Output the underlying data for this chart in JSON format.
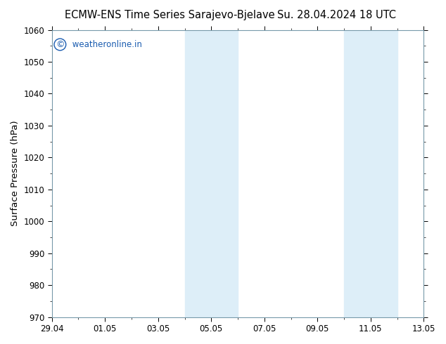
{
  "title_left": "ECMW-ENS Time Series Sarajevo-Bjelave",
  "title_right": "Su. 28.04.2024 18 UTC",
  "ylabel": "Surface Pressure (hPa)",
  "ylim": [
    970,
    1060
  ],
  "yticks": [
    970,
    980,
    990,
    1000,
    1010,
    1020,
    1030,
    1040,
    1050,
    1060
  ],
  "xlim": [
    0,
    14
  ],
  "xtick_labels": [
    "29.04",
    "01.05",
    "03.05",
    "05.05",
    "07.05",
    "09.05",
    "11.05",
    "13.05"
  ],
  "xtick_positions": [
    0,
    2,
    4,
    6,
    8,
    10,
    12,
    14
  ],
  "shaded_bands": [
    {
      "xstart": 5.0,
      "xend": 7.0
    },
    {
      "xstart": 11.0,
      "xend": 13.0
    }
  ],
  "shaded_color": "#ddeef8",
  "background_color": "#ffffff",
  "plot_bg_color": "#ffffff",
  "watermark_text": " weatheronline.in",
  "watermark_color": "#1a5cb0",
  "copyright_symbol": "©",
  "title_color": "#000000",
  "title_fontsize": 10.5,
  "tick_fontsize": 8.5,
  "ylabel_fontsize": 9.5,
  "spine_color": "#7799aa",
  "minor_tick_count": 1
}
